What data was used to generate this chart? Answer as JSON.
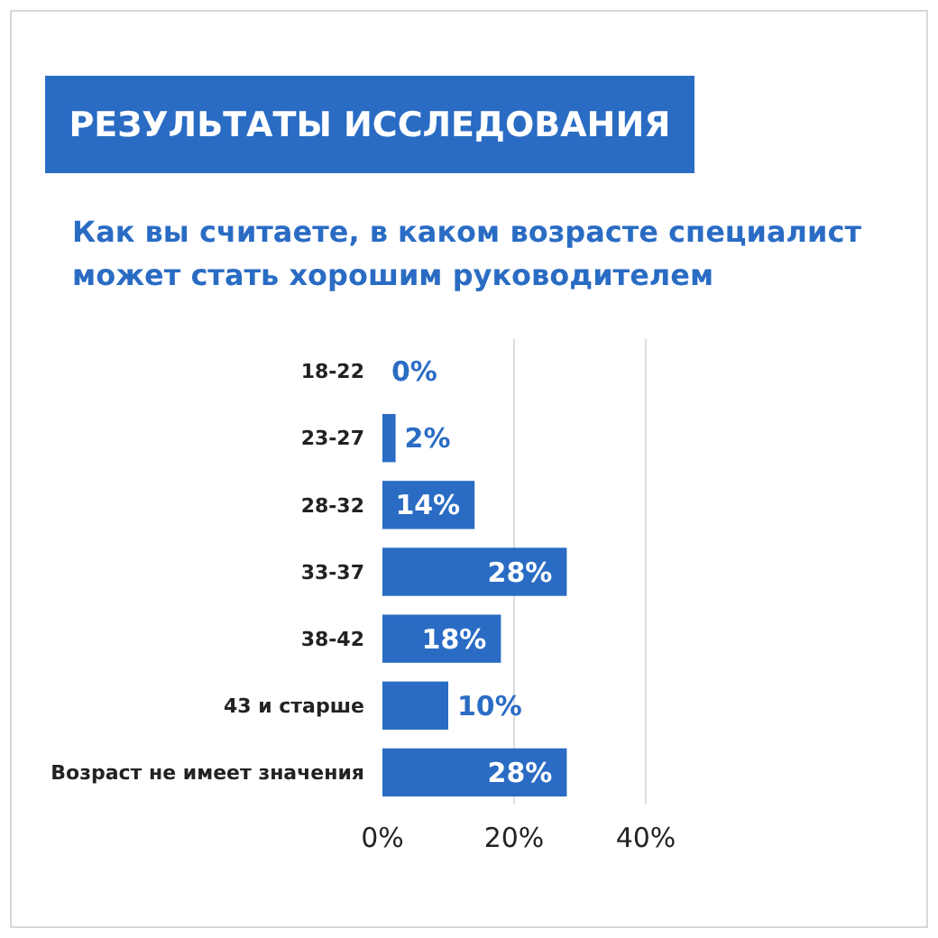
{
  "chart_data": {
    "type": "bar",
    "orientation": "horizontal",
    "title": "РЕЗУЛЬТАТЫ ИССЛЕДОВАНИЯ",
    "subtitle": "Как вы считаете, в каком возрасте специалист может стать хорошим руководителем",
    "categories": [
      "18-22",
      "23-27",
      "28-32",
      "33-37",
      "38-42",
      "43 и старше",
      "Возраст не имеет значения"
    ],
    "values": [
      0,
      2,
      14,
      28,
      18,
      10,
      28
    ],
    "value_labels": [
      "0%",
      "2%",
      "14%",
      "28%",
      "18%",
      "10%",
      "28%"
    ],
    "color": "#2a6cc4",
    "xlim": [
      0,
      40
    ],
    "xticks": [
      {
        "value": 0,
        "label": "0%"
      },
      {
        "value": 20,
        "label": "20%"
      },
      {
        "value": 40,
        "label": "40%"
      }
    ],
    "grid": "x"
  }
}
